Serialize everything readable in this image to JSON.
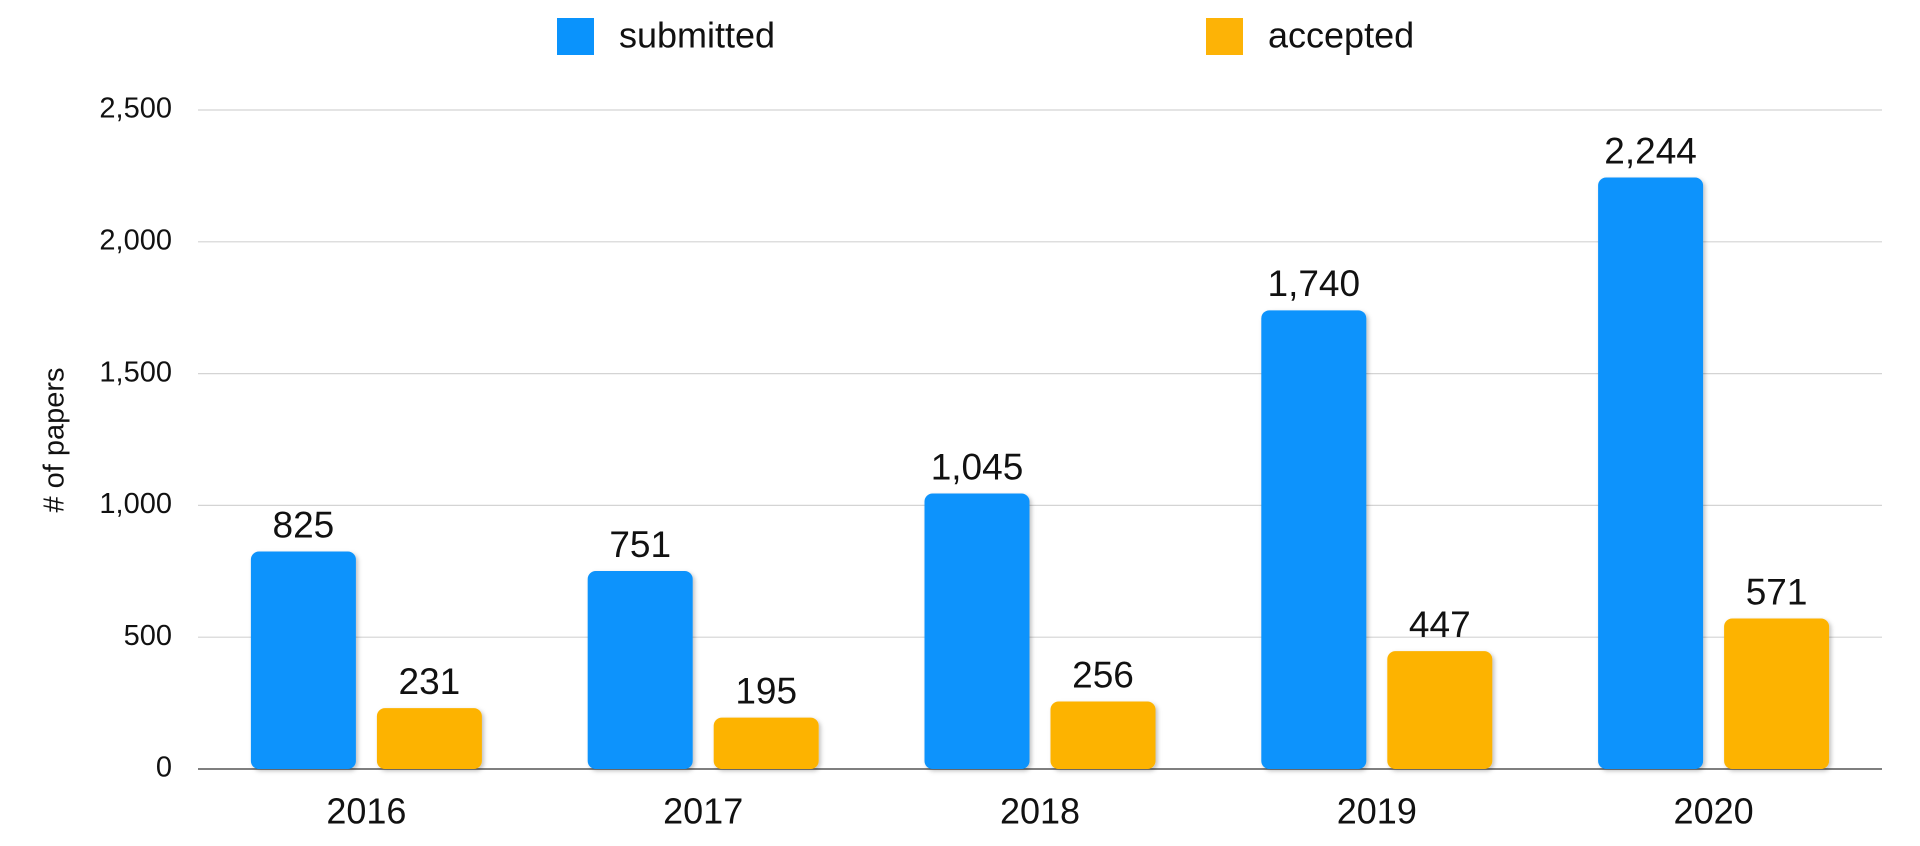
{
  "chart_data": {
    "type": "bar",
    "y_label": "# of papers",
    "categories": [
      "2016",
      "2017",
      "2018",
      "2019",
      "2020"
    ],
    "series": [
      {
        "name": "submitted",
        "color": "#0a93fc",
        "values": [
          825,
          751,
          1045,
          1740,
          2244
        ],
        "value_labels": [
          "825",
          "751",
          "1,045",
          "1,740",
          "2,244"
        ]
      },
      {
        "name": "accepted",
        "color": "#fdb306",
        "values": [
          231,
          195,
          256,
          447,
          571
        ]
      }
    ],
    "ylim": [
      0,
      2500
    ],
    "yticks": [
      0,
      500,
      {
        "value": 1000,
        "label": "1,000"
      },
      {
        "value": 1500,
        "label": "1,500"
      },
      {
        "value": 2000,
        "label": "2,000"
      },
      {
        "value": 2500,
        "label": "2,500"
      }
    ],
    "grid": true
  }
}
